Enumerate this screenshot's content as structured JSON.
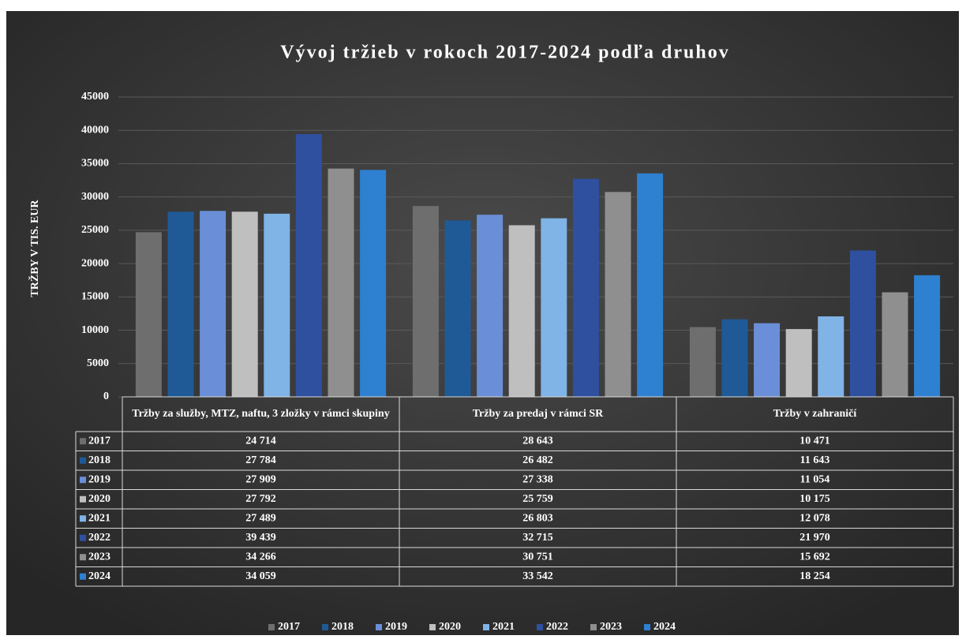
{
  "chart_data": {
    "type": "bar",
    "title": "Vývoj tržieb v rokoch 2017-2024 podľa druhov",
    "y_label": "TRŽBY V TIS. EUR",
    "categories": [
      "Tržby za služby, MTZ, naftu, 3 zložky v rámci skupiny",
      "Tržby za predaj v rámci SR",
      "Tržby v zahraničí"
    ],
    "ylim": [
      0,
      45000
    ],
    "yticks": [
      0,
      5000,
      10000,
      15000,
      20000,
      25000,
      30000,
      35000,
      40000,
      45000
    ],
    "grid": true,
    "legend": "bottom",
    "series": [
      {
        "name": "2017",
        "color": "#6e6e6e",
        "values": [
          24714,
          28643,
          10471
        ],
        "value_labels": [
          "24 714",
          "28 643",
          "10 471"
        ]
      },
      {
        "name": "2018",
        "color": "#1f5a96",
        "values": [
          27784,
          26482,
          11643
        ],
        "value_labels": [
          "27 784",
          "26 482",
          "11 643"
        ]
      },
      {
        "name": "2019",
        "color": "#6a8fd8",
        "values": [
          27909,
          27338,
          11054
        ],
        "value_labels": [
          "27 909",
          "27 338",
          "11 054"
        ]
      },
      {
        "name": "2020",
        "color": "#bfbfbf",
        "values": [
          27792,
          25759,
          10175
        ],
        "value_labels": [
          "27 792",
          "25 759",
          "10 175"
        ]
      },
      {
        "name": "2021",
        "color": "#80b3e6",
        "values": [
          27489,
          26803,
          12078
        ],
        "value_labels": [
          "27 489",
          "26 803",
          "12 078"
        ]
      },
      {
        "name": "2022",
        "color": "#2f4f9f",
        "values": [
          39439,
          32715,
          21970
        ],
        "value_labels": [
          "39 439",
          "32 715",
          "21 970"
        ]
      },
      {
        "name": "2023",
        "color": "#8f8f8f",
        "values": [
          34266,
          30751,
          15692
        ],
        "value_labels": [
          "34 266",
          "30 751",
          "15 692"
        ]
      },
      {
        "name": "2024",
        "color": "#2e80d1",
        "values": [
          34059,
          33542,
          18254
        ],
        "value_labels": [
          "34 059",
          "33 542",
          "18 254"
        ]
      }
    ]
  }
}
